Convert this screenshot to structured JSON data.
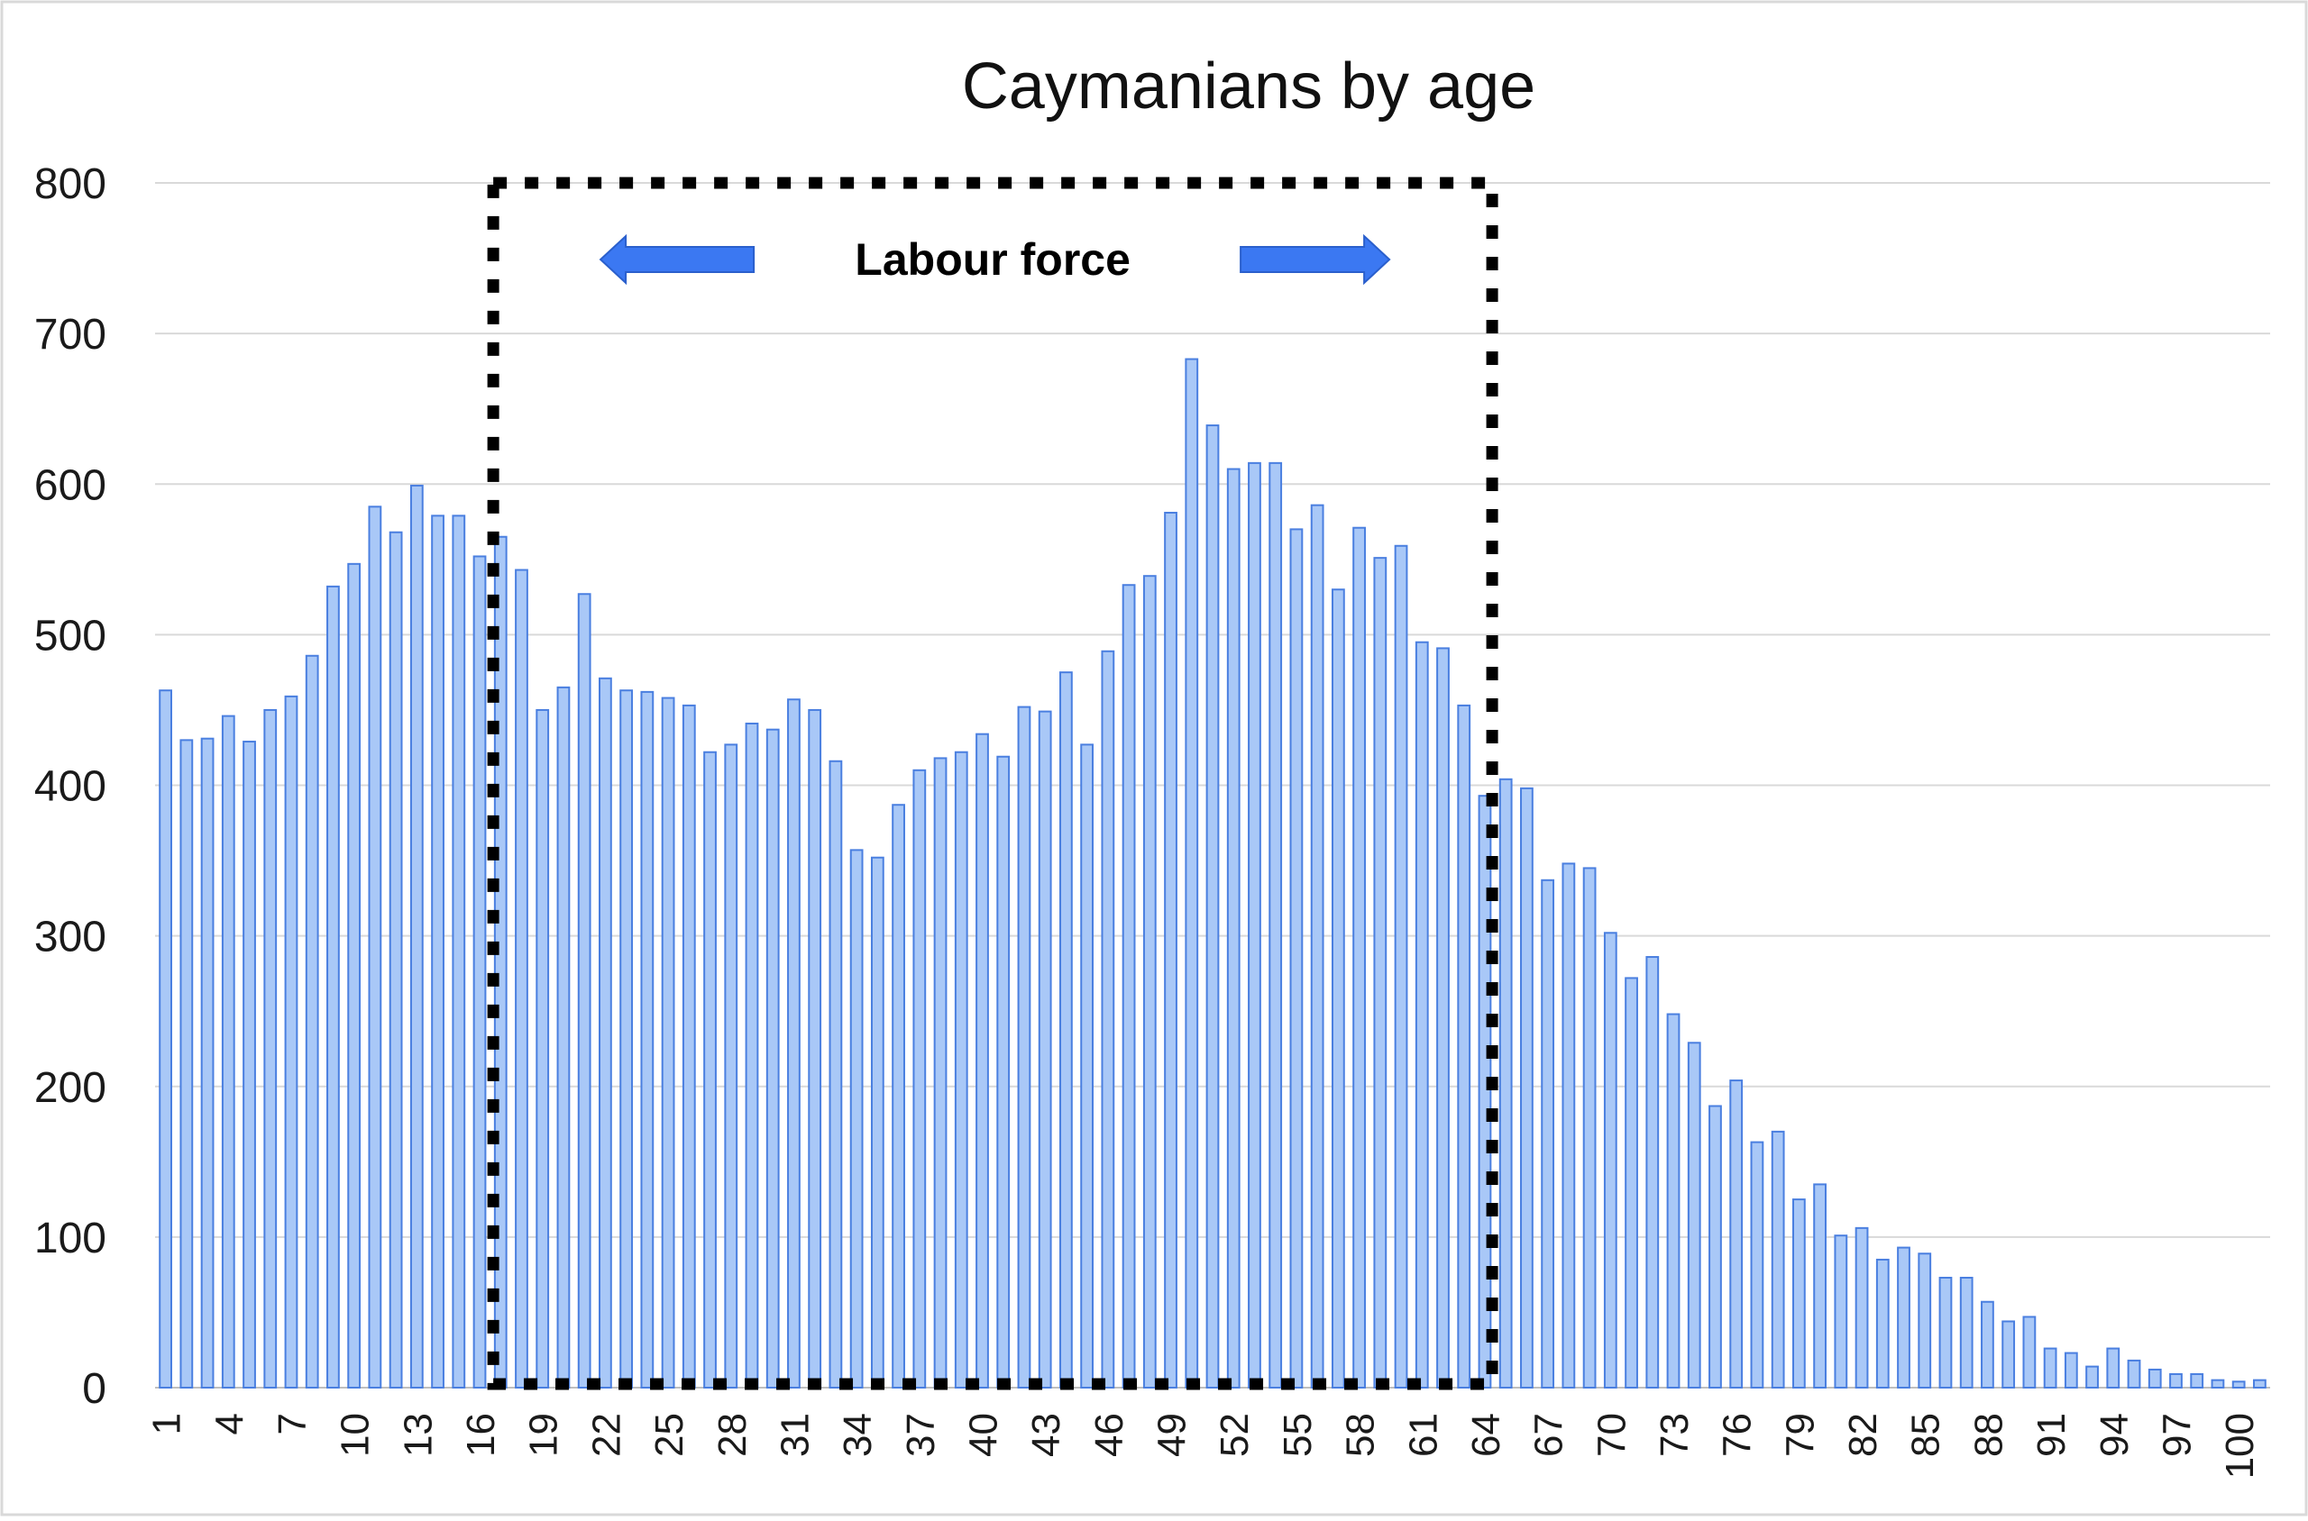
{
  "chart_data": {
    "type": "bar",
    "title": "Caymanians by age",
    "xlabel": "",
    "ylabel": "",
    "ylim": [
      0,
      800
    ],
    "yticks": [
      0,
      100,
      200,
      300,
      400,
      500,
      600,
      700,
      800
    ],
    "grid": true,
    "legend": "none",
    "bar_color": "#a9c8f7",
    "bar_edge_color": "#4a7fe0",
    "categories": [
      1,
      2,
      3,
      4,
      5,
      6,
      7,
      8,
      9,
      10,
      11,
      12,
      13,
      14,
      15,
      16,
      17,
      18,
      19,
      20,
      21,
      22,
      23,
      24,
      25,
      26,
      27,
      28,
      29,
      30,
      31,
      32,
      33,
      34,
      35,
      36,
      37,
      38,
      39,
      40,
      41,
      42,
      43,
      44,
      45,
      46,
      47,
      48,
      49,
      50,
      51,
      52,
      53,
      54,
      55,
      56,
      57,
      58,
      59,
      60,
      61,
      62,
      63,
      64,
      65,
      66,
      67,
      68,
      69,
      70,
      71,
      72,
      73,
      74,
      75,
      76,
      77,
      78,
      79,
      80,
      81,
      82,
      83,
      84,
      85,
      86,
      87,
      88,
      89,
      90,
      91,
      92,
      93,
      94,
      95,
      96,
      97,
      98,
      99,
      100,
      101
    ],
    "x_tick_labels": [
      "1",
      "4",
      "7",
      "10",
      "13",
      "16",
      "19",
      "22",
      "25",
      "28",
      "31",
      "34",
      "37",
      "40",
      "43",
      "46",
      "49",
      "52",
      "55",
      "58",
      "61",
      "64",
      "67",
      "70",
      "73",
      "76",
      "79",
      "82",
      "85",
      "88",
      "91",
      "94",
      "97",
      "100"
    ],
    "values": [
      463,
      430,
      431,
      446,
      429,
      450,
      459,
      486,
      532,
      547,
      585,
      568,
      599,
      579,
      579,
      552,
      565,
      543,
      450,
      465,
      527,
      471,
      463,
      462,
      458,
      453,
      422,
      427,
      441,
      437,
      457,
      450,
      416,
      357,
      352,
      387,
      410,
      418,
      422,
      434,
      419,
      452,
      449,
      475,
      427,
      489,
      533,
      539,
      581,
      683,
      639,
      610,
      614,
      614,
      570,
      586,
      530,
      571,
      551,
      559,
      495,
      491,
      453,
      393,
      404,
      398,
      337,
      348,
      345,
      302,
      272,
      286,
      248,
      229,
      187,
      204,
      163,
      170,
      125,
      135,
      101,
      106,
      85,
      93,
      89,
      73,
      73,
      57,
      44,
      47,
      26,
      23,
      14,
      26,
      18,
      12,
      9,
      9,
      5,
      4,
      5
    ],
    "annotations": [
      {
        "type": "dashed-box",
        "label": "Labour force",
        "from_age": 17,
        "to_age": 64,
        "from_value": 0,
        "to_value": 800,
        "arrows": [
          "left",
          "right"
        ],
        "arrow_color": "#3b78f2",
        "box_color": "#000000"
      }
    ]
  }
}
